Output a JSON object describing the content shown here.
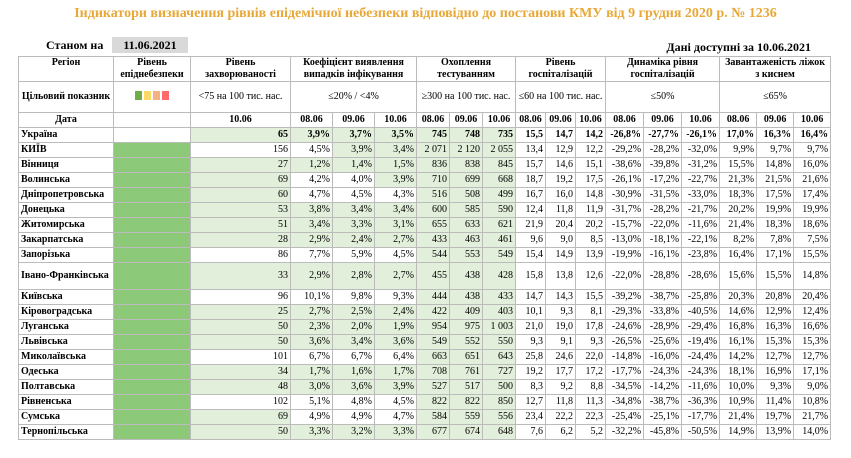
{
  "header": {
    "title": "Індикатори визначення рівнів епідемічної небезпеки відповідно до постанови КМУ від 9 грудня 2020 р. № 1236",
    "as_of_label": "Станом на",
    "as_of_date": "11.06.2021",
    "available": "Дані доступні за 10.06.2021"
  },
  "table": {
    "columns": [
      "Регіон",
      "Рівень епіднебезпеки",
      "Рівень захворюваності",
      "Коефіцієнт виявлення випадків інфікування",
      "Охоплення тестуванням",
      "Рівень госпіталізацій",
      "Динаміка рівня госпіталізацій",
      "Завантаженість ліжок з киснем"
    ],
    "target": {
      "label": "Цільовий показник",
      "values": [
        "<75 на 100 тис. нас.",
        "≤20% / <4%",
        "≥300 на 100 тис. нас.",
        "≤60 на 100 тис. нас.",
        "≤50%",
        "≤65%"
      ]
    },
    "date_label": "Дата",
    "incidence_date": "10.06",
    "date_groups": [
      [
        "08.06",
        "09.06",
        "10.06"
      ],
      [
        "08.06",
        "09.06",
        "10.06"
      ],
      [
        "08.06",
        "09.06",
        "10.06"
      ],
      [
        "08.06",
        "09.06",
        "10.06"
      ],
      [
        "08.06",
        "09.06",
        "10.06"
      ]
    ],
    "rows": [
      [
        "Україна",
        "65",
        "3,9%",
        "3,7%",
        "3,5%",
        "745",
        "748",
        "735",
        "15,5",
        "14,7",
        "14,2",
        "-26,8%",
        "-27,7%",
        "-26,1%",
        "17,0%",
        "16,3%",
        "16,4%"
      ],
      [
        "КИЇВ",
        "156",
        "4,5%",
        "3,9%",
        "3,4%",
        "2 071",
        "2 120",
        "2 055",
        "13,4",
        "12,9",
        "12,2",
        "-29,2%",
        "-28,2%",
        "-32,0%",
        "9,9%",
        "9,7%",
        "9,7%"
      ],
      [
        "Вінниця",
        "27",
        "1,2%",
        "1,4%",
        "1,5%",
        "836",
        "838",
        "845",
        "15,7",
        "14,6",
        "15,1",
        "-38,6%",
        "-39,8%",
        "-31,2%",
        "15,5%",
        "14,8%",
        "16,0%"
      ],
      [
        "Волинська",
        "69",
        "4,2%",
        "4,0%",
        "3,9%",
        "710",
        "699",
        "668",
        "18,7",
        "19,2",
        "17,5",
        "-26,1%",
        "-17,2%",
        "-22,7%",
        "21,3%",
        "21,5%",
        "21,6%"
      ],
      [
        "Дніпропетровська",
        "60",
        "4,7%",
        "4,5%",
        "4,3%",
        "516",
        "508",
        "499",
        "16,7",
        "16,0",
        "14,8",
        "-30,9%",
        "-31,5%",
        "-33,0%",
        "18,3%",
        "17,5%",
        "17,4%"
      ],
      [
        "Донецька",
        "53",
        "3,8%",
        "3,4%",
        "3,4%",
        "600",
        "585",
        "590",
        "12,4",
        "11,8",
        "11,9",
        "-31,7%",
        "-28,2%",
        "-21,7%",
        "20,2%",
        "19,9%",
        "19,9%"
      ],
      [
        "Житомирська",
        "51",
        "3,4%",
        "3,3%",
        "3,1%",
        "655",
        "633",
        "621",
        "21,9",
        "20,4",
        "20,2",
        "-15,7%",
        "-22,0%",
        "-11,6%",
        "21,4%",
        "18,3%",
        "18,6%"
      ],
      [
        "Закарпатська",
        "28",
        "2,9%",
        "2,4%",
        "2,7%",
        "433",
        "463",
        "461",
        "9,6",
        "9,0",
        "8,5",
        "-13,0%",
        "-18,1%",
        "-22,1%",
        "8,2%",
        "7,8%",
        "7,5%"
      ],
      [
        "Запорізька",
        "86",
        "7,7%",
        "5,9%",
        "4,5%",
        "544",
        "553",
        "549",
        "15,4",
        "14,9",
        "13,9",
        "-19,9%",
        "-16,1%",
        "-23,8%",
        "16,4%",
        "17,1%",
        "15,5%"
      ],
      [
        "Івано-Франківська",
        "33",
        "2,9%",
        "2,8%",
        "2,7%",
        "455",
        "438",
        "428",
        "15,8",
        "13,8",
        "12,6",
        "-22,0%",
        "-28,8%",
        "-28,6%",
        "15,6%",
        "15,5%",
        "14,8%"
      ],
      [
        "Київська",
        "96",
        "10,1%",
        "9,8%",
        "9,3%",
        "444",
        "438",
        "433",
        "14,7",
        "14,3",
        "15,5",
        "-39,2%",
        "-38,7%",
        "-25,8%",
        "20,3%",
        "20,8%",
        "20,4%"
      ],
      [
        "Кіровоградська",
        "25",
        "2,7%",
        "2,5%",
        "2,4%",
        "422",
        "409",
        "403",
        "10,1",
        "9,3",
        "8,1",
        "-29,3%",
        "-33,8%",
        "-40,5%",
        "14,6%",
        "12,9%",
        "12,4%"
      ],
      [
        "Луганська",
        "50",
        "2,3%",
        "2,0%",
        "1,9%",
        "954",
        "975",
        "1 003",
        "21,0",
        "19,0",
        "17,8",
        "-24,6%",
        "-28,9%",
        "-29,4%",
        "16,8%",
        "16,3%",
        "16,6%"
      ],
      [
        "Львівська",
        "50",
        "3,6%",
        "3,4%",
        "3,6%",
        "549",
        "552",
        "550",
        "9,3",
        "9,1",
        "9,3",
        "-26,5%",
        "-25,6%",
        "-19,4%",
        "16,1%",
        "15,3%",
        "15,3%"
      ],
      [
        "Миколаївська",
        "101",
        "6,7%",
        "6,7%",
        "6,4%",
        "663",
        "651",
        "643",
        "25,8",
        "24,6",
        "22,0",
        "-14,8%",
        "-16,0%",
        "-24,4%",
        "14,2%",
        "12,7%",
        "12,7%"
      ],
      [
        "Одеська",
        "34",
        "1,7%",
        "1,6%",
        "1,7%",
        "708",
        "761",
        "727",
        "19,2",
        "17,7",
        "17,2",
        "-17,7%",
        "-24,3%",
        "-24,3%",
        "18,1%",
        "16,9%",
        "17,1%"
      ],
      [
        "Полтавська",
        "48",
        "3,0%",
        "3,6%",
        "3,9%",
        "527",
        "517",
        "500",
        "8,3",
        "9,2",
        "8,8",
        "-34,5%",
        "-14,2%",
        "-11,6%",
        "10,0%",
        "9,3%",
        "9,0%"
      ],
      [
        "Рівненська",
        "102",
        "5,1%",
        "4,8%",
        "4,5%",
        "822",
        "822",
        "850",
        "12,7",
        "11,8",
        "11,3",
        "-34,8%",
        "-38,7%",
        "-36,3%",
        "10,9%",
        "11,4%",
        "10,8%"
      ],
      [
        "Сумська",
        "69",
        "4,9%",
        "4,9%",
        "4,7%",
        "584",
        "559",
        "556",
        "23,4",
        "22,2",
        "22,3",
        "-25,4%",
        "-25,1%",
        "-17,7%",
        "21,4%",
        "19,7%",
        "21,7%"
      ],
      [
        "Тернопільська",
        "50",
        "3,3%",
        "3,2%",
        "3,3%",
        "677",
        "674",
        "648",
        "7,6",
        "6,2",
        "5,2",
        "-32,2%",
        "-45,8%",
        "-50,5%",
        "14,9%",
        "13,9%",
        "14,0%"
      ]
    ]
  }
}
